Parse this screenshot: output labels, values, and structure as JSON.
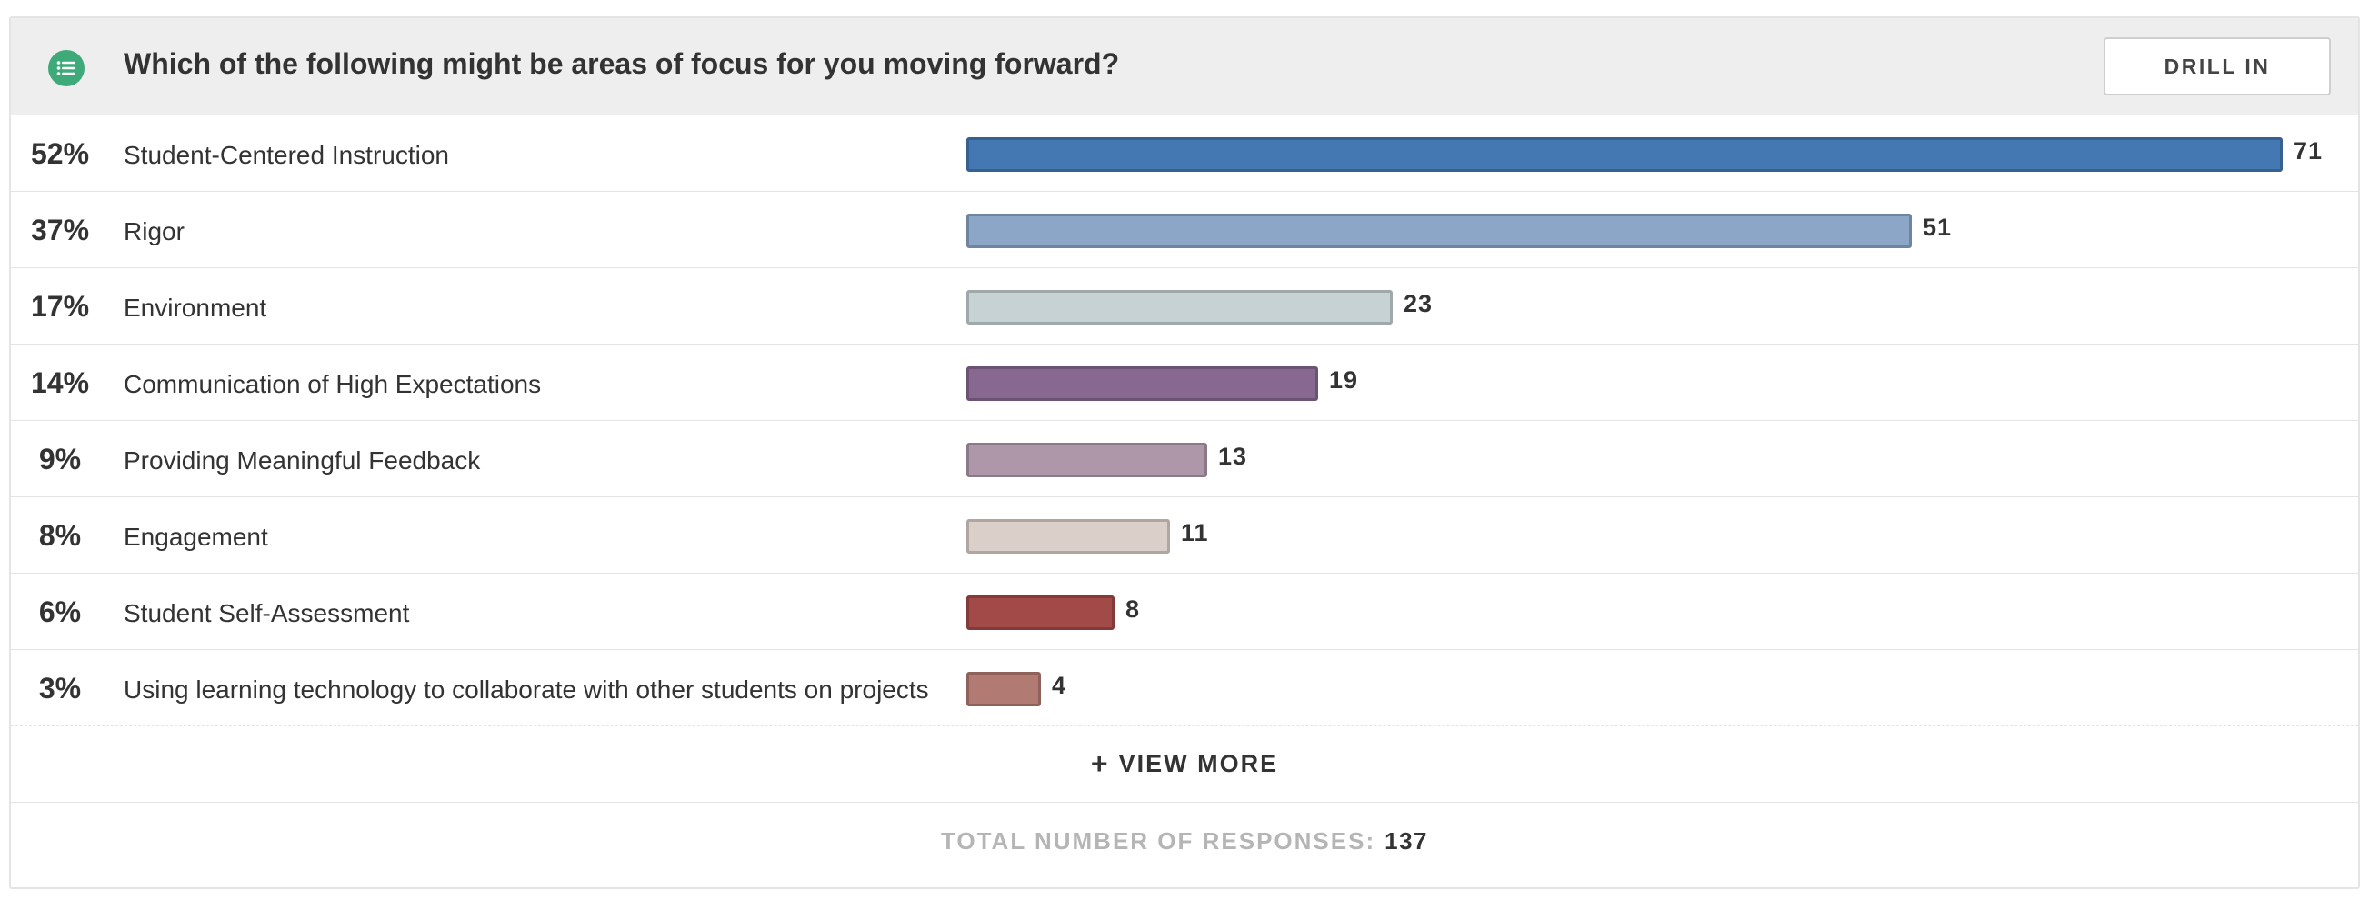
{
  "question": {
    "title": "Which of the following might be areas of focus for you moving forward?",
    "icon": "list-icon"
  },
  "drill_in_label": "DRILL IN",
  "view_more_label": "VIEW MORE",
  "total": {
    "label": "TOTAL NUMBER OF RESPONSES:",
    "value": "137"
  },
  "chart_data": {
    "type": "bar",
    "orientation": "horizontal",
    "categories": [
      "Student-Centered Instruction",
      "Rigor",
      "Environment",
      "Communication of High Expectations",
      "Providing Meaningful Feedback",
      "Engagement",
      "Student Self-Assessment",
      "Using learning technology to collaborate with other students on projects"
    ],
    "percentages": [
      "52%",
      "37%",
      "17%",
      "14%",
      "9%",
      "8%",
      "6%",
      "3%"
    ],
    "values": [
      71,
      51,
      23,
      19,
      13,
      11,
      8,
      4
    ],
    "colors": [
      "#4478b3",
      "#8ba6c7",
      "#c7d2d4",
      "#876891",
      "#ad97a8",
      "#dbcfca",
      "#a24a48",
      "#b17a72"
    ],
    "xlim": [
      0,
      71
    ]
  }
}
